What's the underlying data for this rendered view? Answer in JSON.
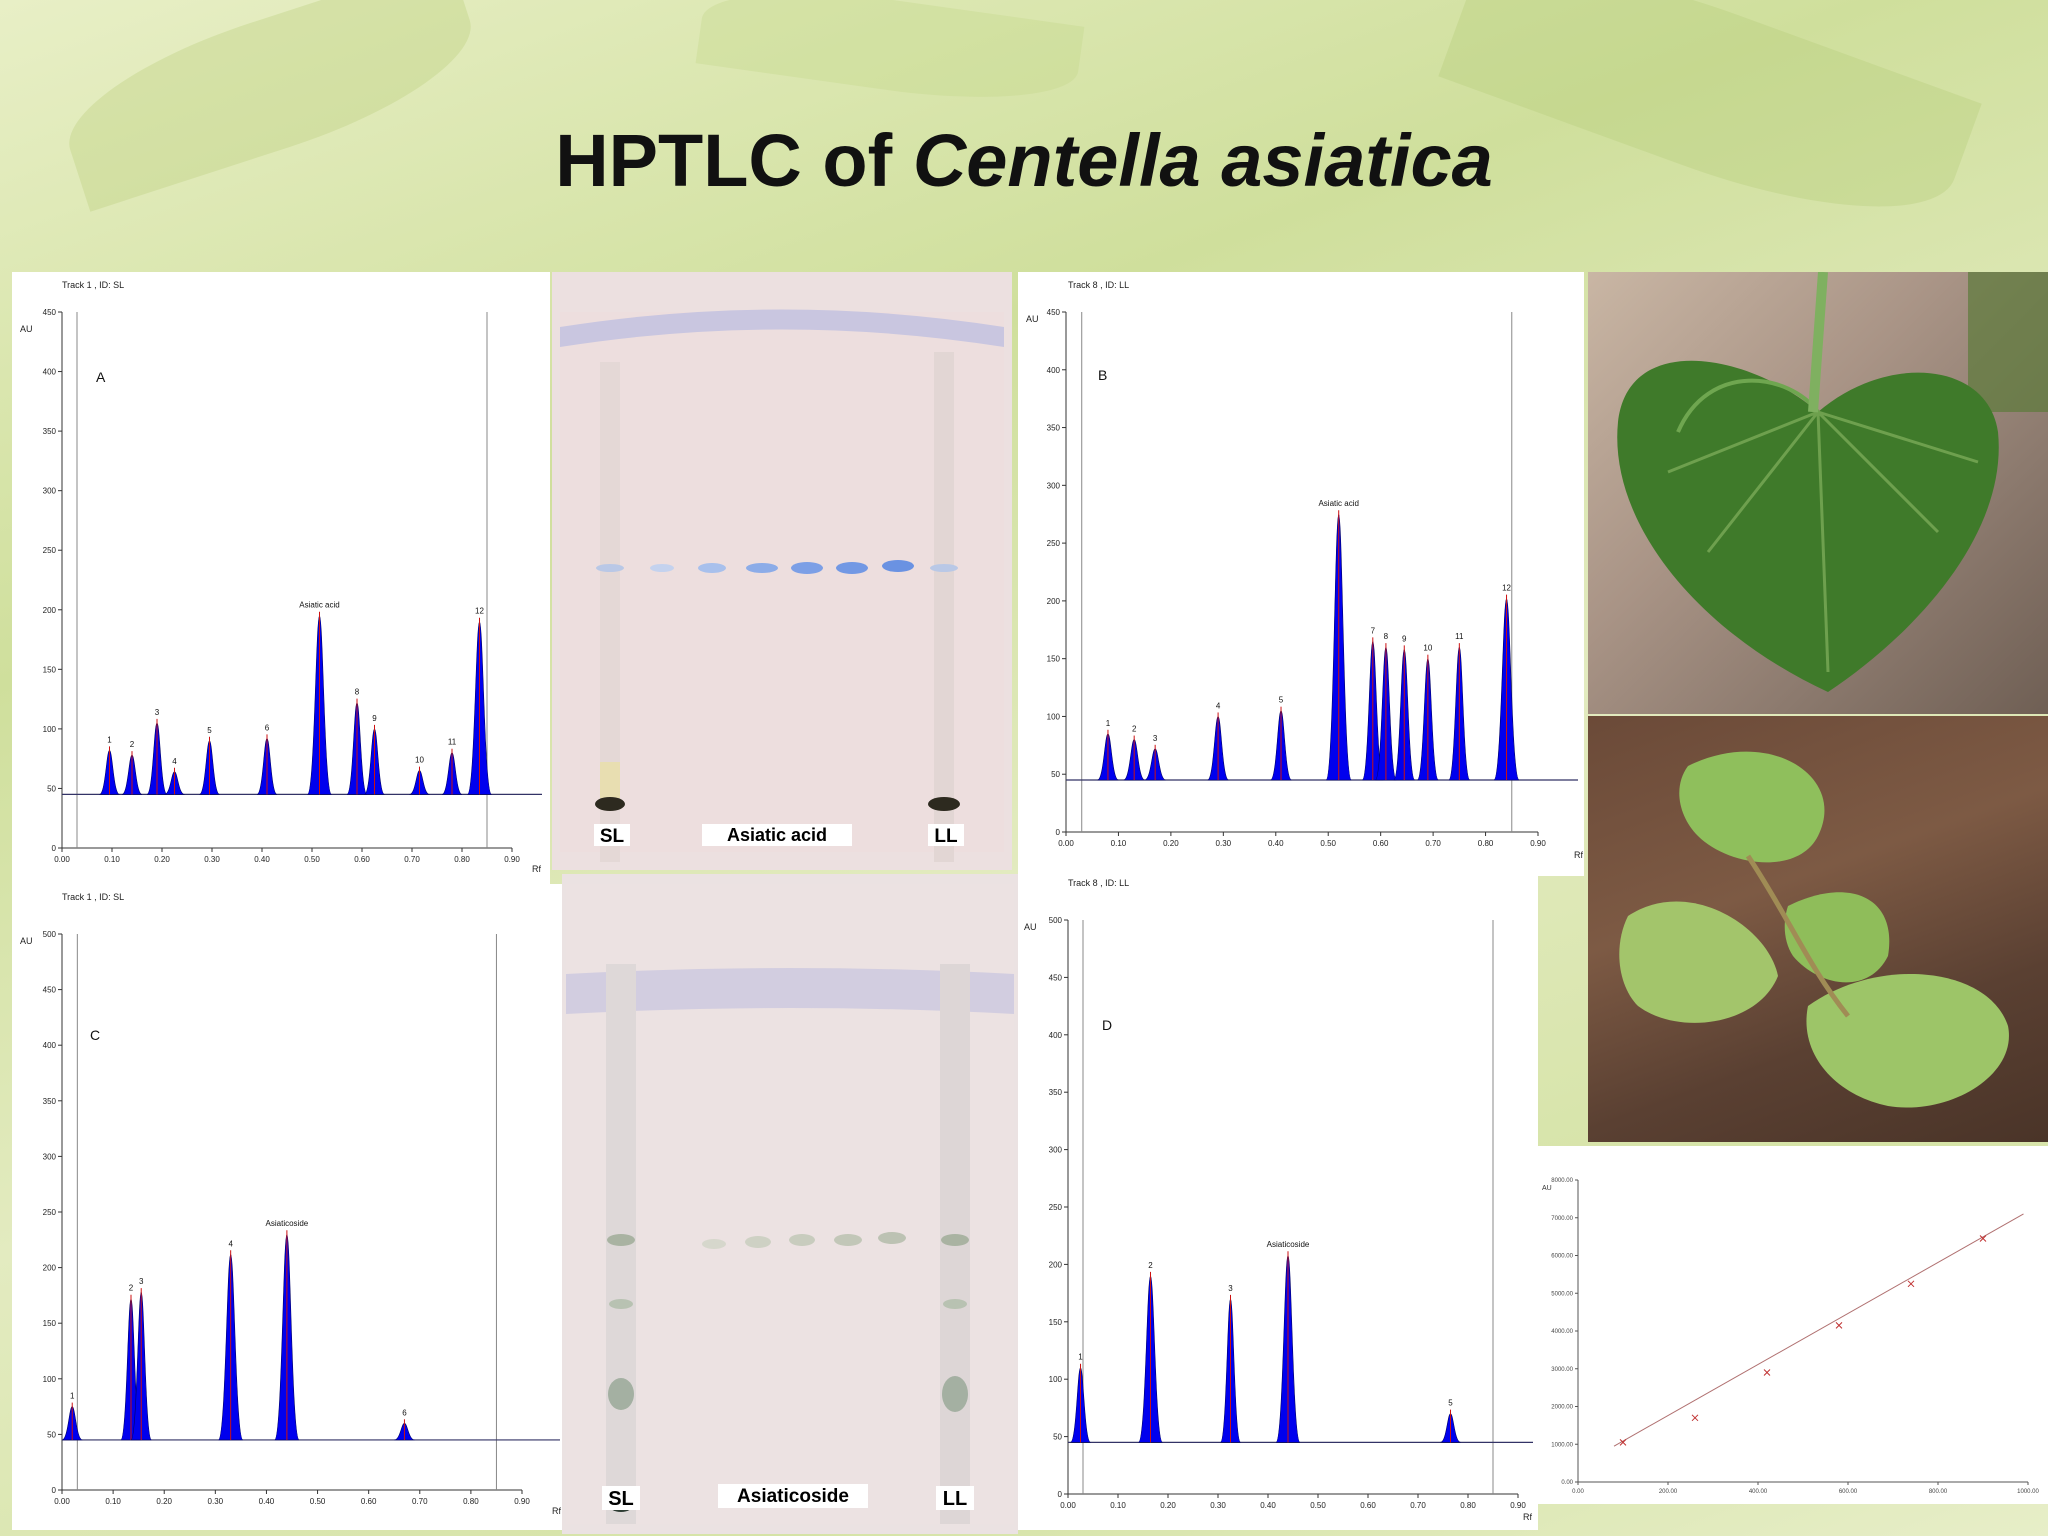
{
  "title": {
    "main": "HPTLC of ",
    "italic": "Centella asiatica"
  },
  "panels": {
    "A": {
      "track": "Track 1 , ID: SL",
      "label": "A",
      "ymax": 450,
      "ystep": 50,
      "xticks": [
        "0.00",
        "0.10",
        "0.20",
        "0.30",
        "0.40",
        "0.50",
        "0.60",
        "0.70",
        "0.80",
        "0.90"
      ],
      "au": "AU",
      "rf": "Rf",
      "annotation": "Asiatic acid",
      "peaks": [
        {
          "label": "1",
          "rf": 0.095,
          "h": 82
        },
        {
          "label": "2",
          "rf": 0.14,
          "h": 78
        },
        {
          "label": "3",
          "rf": 0.19,
          "h": 105
        },
        {
          "label": "4",
          "rf": 0.225,
          "h": 64
        },
        {
          "label": "5",
          "rf": 0.295,
          "h": 90
        },
        {
          "label": "6",
          "rf": 0.41,
          "h": 92
        },
        {
          "label": "Asiatic acid",
          "rf": 0.515,
          "h": 195
        },
        {
          "label": "8",
          "rf": 0.59,
          "h": 122
        },
        {
          "label": "9",
          "rf": 0.625,
          "h": 100
        },
        {
          "label": "10",
          "rf": 0.715,
          "h": 65
        },
        {
          "label": "11",
          "rf": 0.78,
          "h": 80
        },
        {
          "label": "12",
          "rf": 0.835,
          "h": 190
        }
      ]
    },
    "B": {
      "track": "Track 8 , ID: LL",
      "label": "B",
      "ymax": 450,
      "ystep": 50,
      "xticks": [
        "0.00",
        "0.10",
        "0.20",
        "0.30",
        "0.40",
        "0.50",
        "0.60",
        "0.70",
        "0.80",
        "0.90"
      ],
      "au": "AU",
      "rf": "Rf",
      "annotation": "Asiatic acid",
      "peaks": [
        {
          "label": "1",
          "rf": 0.08,
          "h": 85
        },
        {
          "label": "2",
          "rf": 0.13,
          "h": 80
        },
        {
          "label": "3",
          "rf": 0.17,
          "h": 72
        },
        {
          "label": "4",
          "rf": 0.29,
          "h": 100
        },
        {
          "label": "5",
          "rf": 0.41,
          "h": 105
        },
        {
          "label": "Asiatic acid",
          "rf": 0.52,
          "h": 275
        },
        {
          "label": "7",
          "rf": 0.585,
          "h": 165
        },
        {
          "label": "8",
          "rf": 0.61,
          "h": 160
        },
        {
          "label": "9",
          "rf": 0.645,
          "h": 158
        },
        {
          "label": "10",
          "rf": 0.69,
          "h": 150
        },
        {
          "label": "11",
          "rf": 0.75,
          "h": 160
        },
        {
          "label": "12",
          "rf": 0.84,
          "h": 202
        }
      ]
    },
    "C": {
      "track": "Track 1 , ID: SL",
      "label": "C",
      "ymax": 500,
      "ystep": 50,
      "xticks": [
        "0.00",
        "0.10",
        "0.20",
        "0.30",
        "0.40",
        "0.50",
        "0.60",
        "0.70",
        "0.80",
        "0.90"
      ],
      "au": "AU",
      "rf": "Rf",
      "annotation": "Asiaticoside",
      "peaks": [
        {
          "label": "1",
          "rf": 0.02,
          "h": 75
        },
        {
          "label": "2",
          "rf": 0.135,
          "h": 172
        },
        {
          "label": "3",
          "rf": 0.155,
          "h": 178
        },
        {
          "label": "4",
          "rf": 0.33,
          "h": 212
        },
        {
          "label": "Asiaticoside",
          "rf": 0.44,
          "h": 230
        },
        {
          "label": "6",
          "rf": 0.67,
          "h": 60
        }
      ]
    },
    "D": {
      "track": "Track 8 , ID: LL",
      "label": "D",
      "ymax": 500,
      "ystep": 50,
      "xticks": [
        "0.00",
        "0.10",
        "0.20",
        "0.30",
        "0.40",
        "0.50",
        "0.60",
        "0.70",
        "0.80",
        "0.90"
      ],
      "au": "AU",
      "rf": "Rf",
      "annotation": "Asiaticoside",
      "peaks": [
        {
          "label": "1",
          "rf": 0.025,
          "h": 110
        },
        {
          "label": "2",
          "rf": 0.165,
          "h": 190
        },
        {
          "label": "3",
          "rf": 0.325,
          "h": 170
        },
        {
          "label": "Asiaticoside",
          "rf": 0.44,
          "h": 208
        },
        {
          "label": "5",
          "rf": 0.765,
          "h": 70
        }
      ]
    }
  },
  "plates": {
    "top": {
      "left_label": "SL",
      "center_label": "Asiatic acid",
      "right_label": "LL"
    },
    "bottom": {
      "left_label": "SL",
      "center_label": "Asiaticoside",
      "right_label": "LL"
    }
  },
  "calibration": {
    "au": "AU",
    "yticks": [
      "0.00",
      "1000.00",
      "2000.00",
      "3000.00",
      "4000.00",
      "5000.00",
      "6000.00",
      "7000.00",
      "8000.00"
    ],
    "xticks": [
      "0.00",
      "200.00",
      "400.00",
      "600.00",
      "800.00",
      "1000.00"
    ],
    "points": [
      [
        100,
        1050
      ],
      [
        260,
        1700
      ],
      [
        420,
        2900
      ],
      [
        580,
        4150
      ],
      [
        740,
        5250
      ],
      [
        900,
        6450
      ]
    ]
  },
  "colors": {
    "peak_fill": "#0000ee",
    "baseline": "#333366",
    "marker": "#cc1111"
  }
}
